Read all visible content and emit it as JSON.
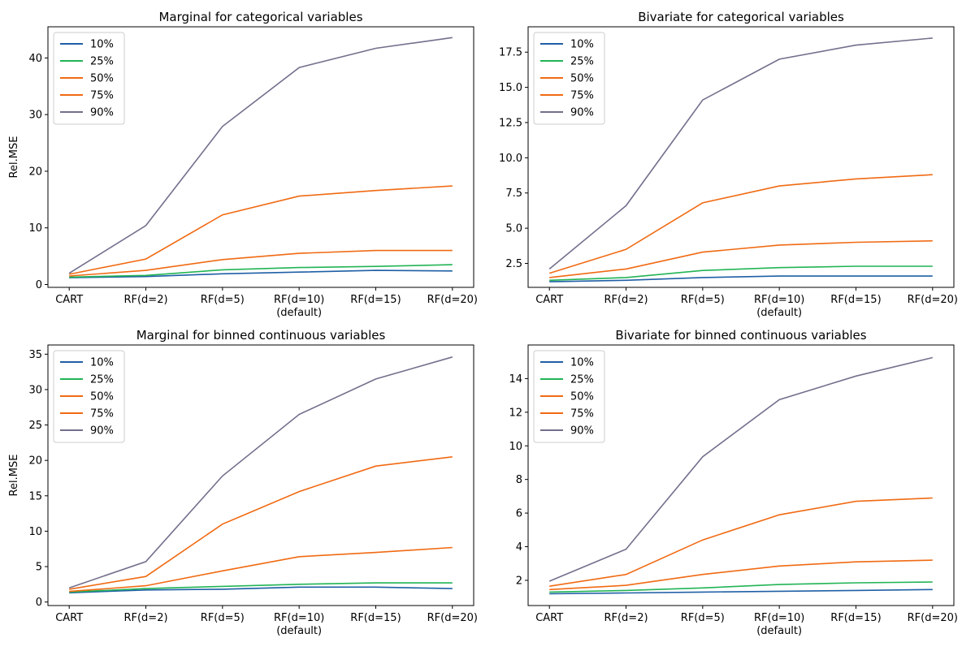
{
  "chart_data": [
    {
      "type": "line",
      "title": "Marginal for categorical variables",
      "xlabel": "",
      "ylabel": "Rel.MSE",
      "categories": [
        "CART",
        "RF(d=2)",
        "RF(d=5)",
        "RF(d=10)",
        "RF(d=15)",
        "RF(d=20)"
      ],
      "category_sublabels": [
        "",
        "",
        "",
        "(default)",
        "",
        ""
      ],
      "ylim": [
        -0.5,
        45.5
      ],
      "yticks": [
        0,
        10,
        20,
        30,
        40
      ],
      "ytick_labels": [
        "0",
        "10",
        "20",
        "30",
        "40"
      ],
      "legend": "top-left",
      "grid": false,
      "series": [
        {
          "name": "10%",
          "color": "#1f5fa5",
          "values": [
            1.2,
            1.4,
            1.9,
            2.2,
            2.5,
            2.4
          ]
        },
        {
          "name": "25%",
          "color": "#22b455",
          "values": [
            1.3,
            1.6,
            2.6,
            3.0,
            3.2,
            3.5
          ]
        },
        {
          "name": "50%",
          "color": "#f06a13",
          "values": [
            1.5,
            2.5,
            4.4,
            5.5,
            6.0,
            6.0
          ]
        },
        {
          "name": "75%",
          "color": "#f06a13",
          "values": [
            1.8,
            4.5,
            12.3,
            15.6,
            16.6,
            17.4
          ]
        },
        {
          "name": "90%",
          "color": "#736f8c",
          "values": [
            2.0,
            10.4,
            27.9,
            38.3,
            41.7,
            43.6
          ]
        }
      ]
    },
    {
      "type": "line",
      "title": "Bivariate for categorical variables",
      "xlabel": "",
      "ylabel": "",
      "categories": [
        "CART",
        "RF(d=2)",
        "RF(d=5)",
        "RF(d=10)",
        "RF(d=15)",
        "RF(d=20)"
      ],
      "category_sublabels": [
        "",
        "",
        "",
        "(default)",
        "",
        ""
      ],
      "ylim": [
        0.8,
        19.3
      ],
      "yticks": [
        2.5,
        5.0,
        7.5,
        10.0,
        12.5,
        15.0,
        17.5
      ],
      "ytick_labels": [
        "2.5",
        "5.0",
        "7.5",
        "10.0",
        "12.5",
        "15.0",
        "17.5"
      ],
      "legend": "top-left",
      "grid": false,
      "series": [
        {
          "name": "10%",
          "color": "#1f5fa5",
          "values": [
            1.2,
            1.3,
            1.5,
            1.6,
            1.6,
            1.6
          ]
        },
        {
          "name": "25%",
          "color": "#22b455",
          "values": [
            1.3,
            1.5,
            2.0,
            2.2,
            2.3,
            2.3
          ]
        },
        {
          "name": "50%",
          "color": "#f06a13",
          "values": [
            1.5,
            2.1,
            3.3,
            3.8,
            4.0,
            4.1
          ]
        },
        {
          "name": "75%",
          "color": "#f06a13",
          "values": [
            1.8,
            3.5,
            6.8,
            8.0,
            8.5,
            8.8
          ]
        },
        {
          "name": "90%",
          "color": "#736f8c",
          "values": [
            2.1,
            6.6,
            14.1,
            17.0,
            18.0,
            18.5
          ]
        }
      ]
    },
    {
      "type": "line",
      "title": "Marginal for binned continuous variables",
      "xlabel": "",
      "ylabel": "Rel.MSE",
      "categories": [
        "CART",
        "RF(d=2)",
        "RF(d=5)",
        "RF(d=10)",
        "RF(d=15)",
        "RF(d=20)"
      ],
      "category_sublabels": [
        "",
        "",
        "",
        "(default)",
        "",
        ""
      ],
      "ylim": [
        -0.5,
        36.3
      ],
      "yticks": [
        0,
        5,
        10,
        15,
        20,
        25,
        30,
        35
      ],
      "ytick_labels": [
        "0",
        "5",
        "10",
        "15",
        "20",
        "25",
        "30",
        "35"
      ],
      "legend": "top-left",
      "grid": false,
      "series": [
        {
          "name": "10%",
          "color": "#1f5fa5",
          "values": [
            1.3,
            1.7,
            1.8,
            2.1,
            2.1,
            1.9
          ]
        },
        {
          "name": "25%",
          "color": "#22b455",
          "values": [
            1.4,
            1.9,
            2.2,
            2.5,
            2.7,
            2.7
          ]
        },
        {
          "name": "50%",
          "color": "#f06a13",
          "values": [
            1.5,
            2.3,
            4.4,
            6.4,
            7.0,
            7.7
          ]
        },
        {
          "name": "75%",
          "color": "#f06a13",
          "values": [
            1.8,
            3.6,
            11.0,
            15.6,
            19.2,
            20.5
          ]
        },
        {
          "name": "90%",
          "color": "#736f8c",
          "values": [
            2.0,
            5.7,
            17.8,
            26.5,
            31.5,
            34.6
          ]
        }
      ]
    },
    {
      "type": "line",
      "title": "Bivariate for binned continuous variables",
      "xlabel": "",
      "ylabel": "",
      "categories": [
        "CART",
        "RF(d=2)",
        "RF(d=5)",
        "RF(d=10)",
        "RF(d=15)",
        "RF(d=20)"
      ],
      "category_sublabels": [
        "",
        "",
        "",
        "(default)",
        "",
        ""
      ],
      "ylim": [
        0.5,
        16.0
      ],
      "yticks": [
        2,
        4,
        6,
        8,
        10,
        12,
        14
      ],
      "ytick_labels": [
        "2",
        "4",
        "6",
        "8",
        "10",
        "12",
        "14"
      ],
      "legend": "top-left",
      "grid": false,
      "series": [
        {
          "name": "10%",
          "color": "#1f5fa5",
          "values": [
            1.2,
            1.25,
            1.3,
            1.35,
            1.4,
            1.45
          ]
        },
        {
          "name": "25%",
          "color": "#22b455",
          "values": [
            1.3,
            1.4,
            1.55,
            1.75,
            1.85,
            1.9
          ]
        },
        {
          "name": "50%",
          "color": "#f06a13",
          "values": [
            1.45,
            1.7,
            2.35,
            2.85,
            3.1,
            3.2
          ]
        },
        {
          "name": "75%",
          "color": "#f06a13",
          "values": [
            1.65,
            2.35,
            4.4,
            5.9,
            6.7,
            6.9
          ]
        },
        {
          "name": "90%",
          "color": "#736f8c",
          "values": [
            1.95,
            3.85,
            9.35,
            12.75,
            14.15,
            15.25
          ]
        }
      ]
    }
  ]
}
